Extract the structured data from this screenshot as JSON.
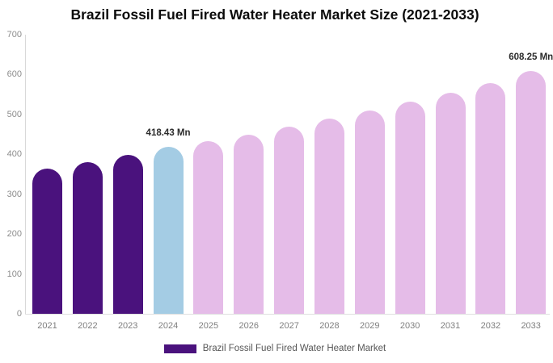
{
  "title": "Brazil Fossil Fuel Fired Water Heater Market Size (2021-2033)",
  "chart_data": {
    "type": "bar",
    "title": "Brazil Fossil Fuel Fired Water Heater Market Size (2021-2033)",
    "categories": [
      "2021",
      "2022",
      "2023",
      "2024",
      "2025",
      "2026",
      "2027",
      "2028",
      "2029",
      "2030",
      "2031",
      "2032",
      "2033"
    ],
    "values": [
      365,
      381,
      398,
      418.43,
      433,
      450,
      469,
      489,
      510,
      532,
      555,
      579,
      608.25
    ],
    "unit": "Mn",
    "xlabel": "",
    "ylabel": "",
    "ylim": [
      0,
      700
    ],
    "yticks": [
      0,
      100,
      200,
      300,
      400,
      500,
      600,
      700
    ],
    "grid": false,
    "legend": {
      "position": "bottom",
      "entries": [
        {
          "label": "Brazil Fossil Fuel Fired Water Heater Market",
          "color": "#4a127d"
        }
      ]
    },
    "annotations": [
      {
        "category": "2024",
        "text": "418.43 Mn"
      },
      {
        "category": "2033",
        "text": "608.25 Mn"
      }
    ],
    "bar_colors": [
      "#4a127d",
      "#4a127d",
      "#4a127d",
      "#a4cce4",
      "#e5bce8",
      "#e5bce8",
      "#e5bce8",
      "#e5bce8",
      "#e5bce8",
      "#e5bce8",
      "#e5bce8",
      "#e5bce8",
      "#e5bce8"
    ]
  },
  "colors": {
    "historical": "#4a127d",
    "highlight_current": "#a4cce4",
    "forecast": "#e5bce8",
    "axis_line": "#d9d9d9",
    "tick_text": "#8c8c8c",
    "annotation_text": "#2b2b2b",
    "legend_text": "#565656"
  }
}
